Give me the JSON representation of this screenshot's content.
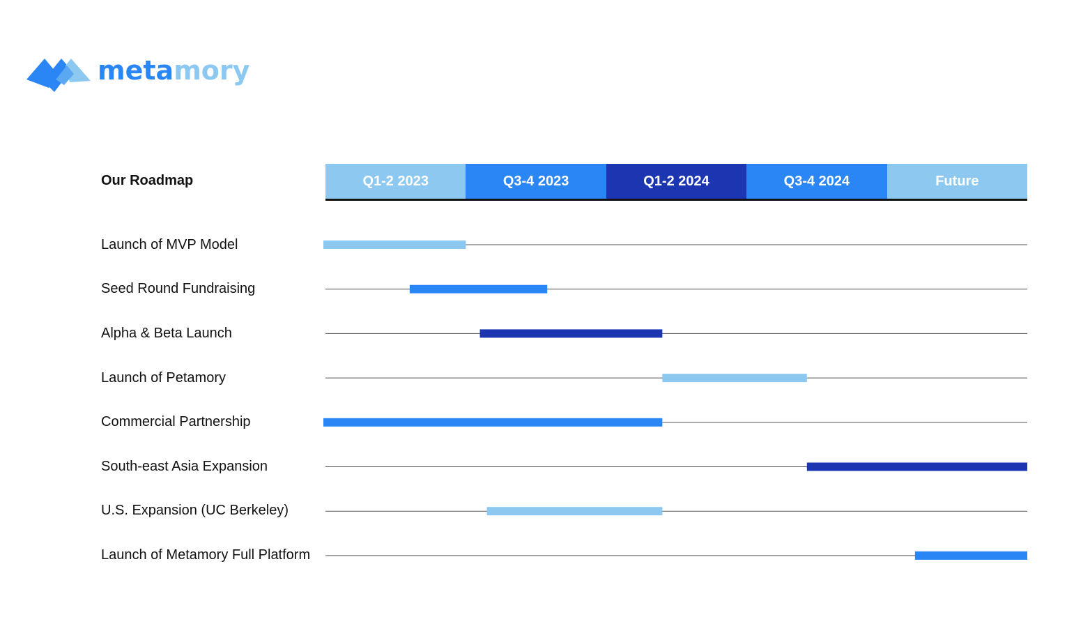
{
  "logo": {
    "text_part1": "meta",
    "text_part2": "mory",
    "colors": {
      "primary": "#2b86f5",
      "secondary": "#8cc8ef"
    }
  },
  "title": "Our Roadmap",
  "colors": {
    "light": "#8cc8ef",
    "medium": "#2b86f5",
    "dark": "#1b36b0",
    "track": "#555555"
  },
  "periods": [
    {
      "label": "Q1-2 2023",
      "color": "light"
    },
    {
      "label": "Q3-4 2023",
      "color": "medium"
    },
    {
      "label": "Q1-2 2024",
      "color": "dark"
    },
    {
      "label": "Q3-4 2024",
      "color": "medium"
    },
    {
      "label": "Future",
      "color": "light"
    }
  ],
  "chart_data": {
    "type": "gantt",
    "x_unit": "period index (0 = start of Q1-2 2023, 5 = end of Future)",
    "x_range": [
      0,
      5
    ],
    "tasks": [
      {
        "name": "Launch of MVP Model",
        "start": 0.0,
        "end": 1.0,
        "color": "light"
      },
      {
        "name": "Seed Round Fundraising",
        "start": 0.6,
        "end": 1.58,
        "color": "medium"
      },
      {
        "name": "Alpha & Beta Launch",
        "start": 1.1,
        "end": 2.4,
        "color": "dark"
      },
      {
        "name": "Launch of Petamory",
        "start": 2.4,
        "end": 3.43,
        "color": "light"
      },
      {
        "name": "Commercial Partnership",
        "start": 0.0,
        "end": 2.4,
        "color": "medium"
      },
      {
        "name": "South-east Asia Expansion",
        "start": 3.43,
        "end": 5.0,
        "color": "dark"
      },
      {
        "name": "U.S. Expansion (UC Berkeley)",
        "start": 1.15,
        "end": 2.4,
        "color": "light"
      },
      {
        "name": "Launch of Metamory Full Platform",
        "start": 4.2,
        "end": 5.0,
        "color": "medium"
      }
    ]
  }
}
